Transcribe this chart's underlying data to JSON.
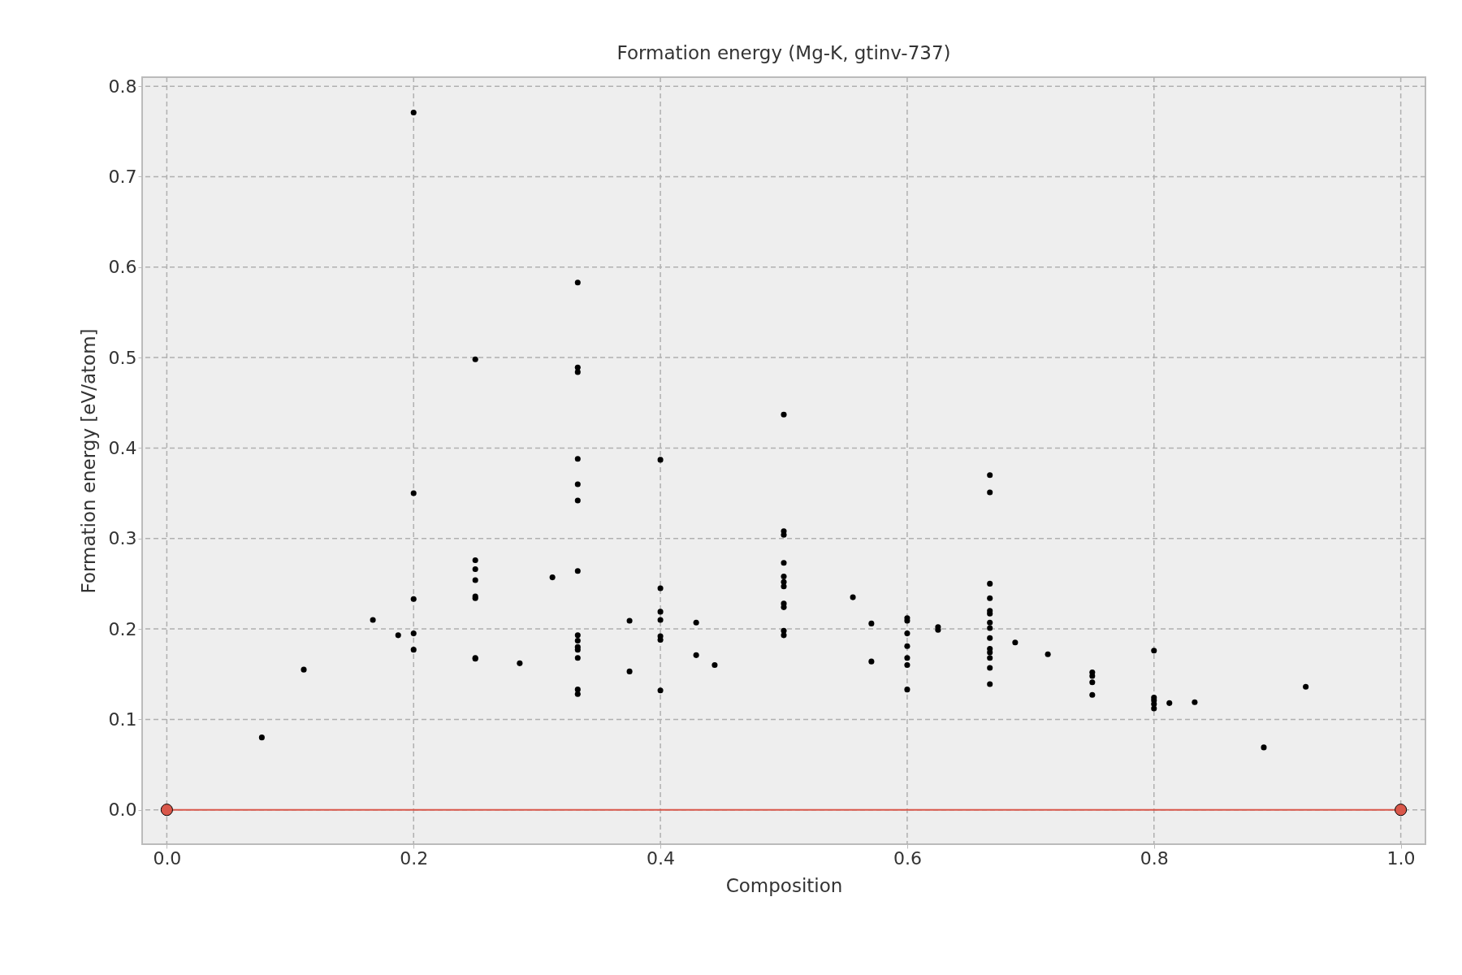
{
  "chart_data": {
    "type": "scatter",
    "title": "Formation energy (Mg-K, gtinv-737)",
    "xlabel": "Composition",
    "ylabel": "Formation energy [eV/atom]",
    "xlim": [
      -0.02,
      1.02
    ],
    "xticks": [
      {
        "value": 0,
        "label": "0.0"
      },
      0.2,
      0.4,
      0.6,
      0.8,
      {
        "value": 1,
        "label": "1.0"
      }
    ],
    "ylim": [
      -0.038,
      0.81
    ],
    "yticks": [
      {
        "value": 0,
        "label": "0.0"
      },
      0.1,
      0.2,
      0.3,
      0.4,
      0.5,
      0.6,
      0.7,
      0.8
    ],
    "grid": true,
    "marker": "circle",
    "series": [
      {
        "color": "#000000",
        "x": [
          0.077,
          0.111,
          0.167,
          0.1875,
          0.2,
          0.2,
          0.2,
          0.2,
          0.2,
          0.25,
          0.25,
          0.25,
          0.25,
          0.25,
          0.25,
          0.25,
          0.25,
          0.286,
          0.3125,
          0.333,
          0.333,
          0.333,
          0.333,
          0.333,
          0.333,
          0.333,
          0.333,
          0.333,
          0.333,
          0.333,
          0.333,
          0.333,
          0.333,
          0.375,
          0.375,
          0.4,
          0.4,
          0.4,
          0.4,
          0.4,
          0.4,
          0.4,
          0.429,
          0.429,
          0.444,
          0.5,
          0.5,
          0.5,
          0.5,
          0.5,
          0.5,
          0.5,
          0.5,
          0.5,
          0.5,
          0.5,
          0.556,
          0.571,
          0.571,
          0.6,
          0.6,
          0.6,
          0.6,
          0.6,
          0.6,
          0.6,
          0.625,
          0.625,
          0.667,
          0.667,
          0.667,
          0.667,
          0.667,
          0.667,
          0.667,
          0.667,
          0.667,
          0.667,
          0.667,
          0.667,
          0.667,
          0.667,
          0.6875,
          0.714,
          0.75,
          0.75,
          0.75,
          0.75,
          0.8,
          0.8,
          0.8,
          0.8,
          0.8,
          0.8125,
          0.833,
          0.889,
          0.923
        ],
        "values": [
          0.08,
          0.155,
          0.21,
          0.193,
          0.771,
          0.35,
          0.233,
          0.195,
          0.177,
          0.498,
          0.276,
          0.266,
          0.254,
          0.236,
          0.234,
          0.168,
          0.167,
          0.162,
          0.257,
          0.583,
          0.489,
          0.484,
          0.388,
          0.36,
          0.342,
          0.264,
          0.193,
          0.187,
          0.18,
          0.177,
          0.168,
          0.133,
          0.128,
          0.209,
          0.153,
          0.387,
          0.245,
          0.219,
          0.21,
          0.192,
          0.188,
          0.132,
          0.207,
          0.171,
          0.16,
          0.437,
          0.308,
          0.304,
          0.273,
          0.258,
          0.252,
          0.247,
          0.228,
          0.224,
          0.198,
          0.193,
          0.235,
          0.206,
          0.164,
          0.212,
          0.209,
          0.195,
          0.181,
          0.168,
          0.16,
          0.133,
          0.202,
          0.199,
          0.37,
          0.351,
          0.25,
          0.234,
          0.22,
          0.217,
          0.207,
          0.201,
          0.19,
          0.178,
          0.174,
          0.168,
          0.157,
          0.139,
          0.185,
          0.172,
          0.152,
          0.148,
          0.141,
          0.127,
          0.176,
          0.124,
          0.121,
          0.117,
          0.112,
          0.118,
          0.119,
          0.069,
          0.136
        ]
      },
      {
        "type": "line",
        "color": "#d9574a",
        "x": [
          0,
          1
        ],
        "values": [
          0,
          0
        ]
      }
    ]
  }
}
